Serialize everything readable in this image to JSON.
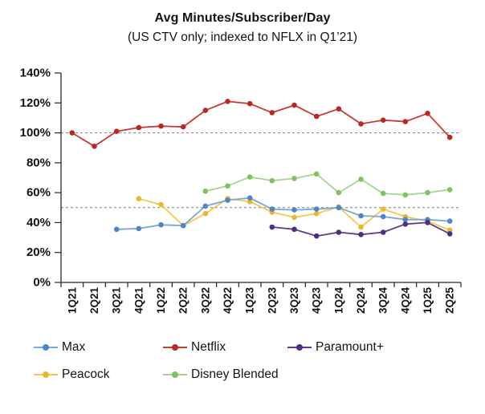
{
  "title": "Avg Minutes/Subscriber/Day",
  "subtitle": "(US CTV only; indexed to NFLX in Q1’21)",
  "chart_data": {
    "type": "line",
    "title": "Avg Minutes/Subscriber/Day",
    "subtitle": "(US CTV only; indexed to NFLX in Q1’21)",
    "xlabel": "",
    "ylabel": "",
    "ylim": [
      0,
      140
    ],
    "yticks": [
      0,
      20,
      40,
      60,
      80,
      100,
      120,
      140
    ],
    "ytick_labels": [
      "0%",
      "20%",
      "40%",
      "60%",
      "80%",
      "100%",
      "120%",
      "140%"
    ],
    "reference_lines": [
      100,
      50
    ],
    "grid": "off",
    "legend_position": "bottom",
    "categories": [
      "1Q21",
      "2Q21",
      "3Q21",
      "4Q21",
      "1Q22",
      "2Q22",
      "3Q22",
      "4Q22",
      "1Q23",
      "2Q23",
      "3Q23",
      "4Q23",
      "1Q24",
      "2Q24",
      "3Q24",
      "4Q24",
      "1Q25",
      "2Q25"
    ],
    "series": [
      {
        "name": "Max",
        "line_color": "#74A9D8",
        "marker_color": "#4E87C3",
        "values": [
          null,
          null,
          35.5,
          36,
          38.5,
          38,
          51,
          55,
          56.5,
          49,
          48.5,
          49,
          50,
          44.5,
          44,
          42,
          42,
          41
        ]
      },
      {
        "name": "Netflix",
        "line_color": "#CB3A31",
        "marker_color": "#B92822",
        "values": [
          100,
          91,
          101,
          103.5,
          104.5,
          104,
          115,
          121,
          119.5,
          113.5,
          118.5,
          111,
          116,
          106,
          108.5,
          107.5,
          113,
          97
        ]
      },
      {
        "name": "Paramount+",
        "line_color": "#5E3C94",
        "marker_color": "#4C2F7D",
        "values": [
          null,
          null,
          null,
          null,
          null,
          null,
          null,
          null,
          null,
          37,
          35.5,
          31,
          33.5,
          32,
          33.5,
          39,
          40,
          32.5
        ]
      },
      {
        "name": "Peacock",
        "line_color": "#F4C84F",
        "marker_color": "#E9B830",
        "values": [
          null,
          null,
          null,
          56,
          52,
          38,
          46,
          56,
          54,
          47,
          43.5,
          46,
          50.5,
          37,
          49,
          44,
          41,
          35
        ]
      },
      {
        "name": "Disney Blended",
        "line_color": "#A8D492",
        "marker_color": "#7FC25F",
        "values": [
          null,
          null,
          null,
          null,
          null,
          null,
          61,
          64.5,
          70.5,
          68,
          69.5,
          72.5,
          60,
          69,
          59.5,
          58.5,
          60,
          62
        ]
      }
    ]
  },
  "legend": {
    "rows": [
      [
        "Max",
        "Netflix",
        "Paramount+"
      ],
      [
        "Peacock",
        "Disney Blended"
      ]
    ]
  },
  "colors": {
    "axis": "#262626",
    "reference_line": "#7f7f7f",
    "text": "#141414",
    "background": "#ffffff"
  }
}
